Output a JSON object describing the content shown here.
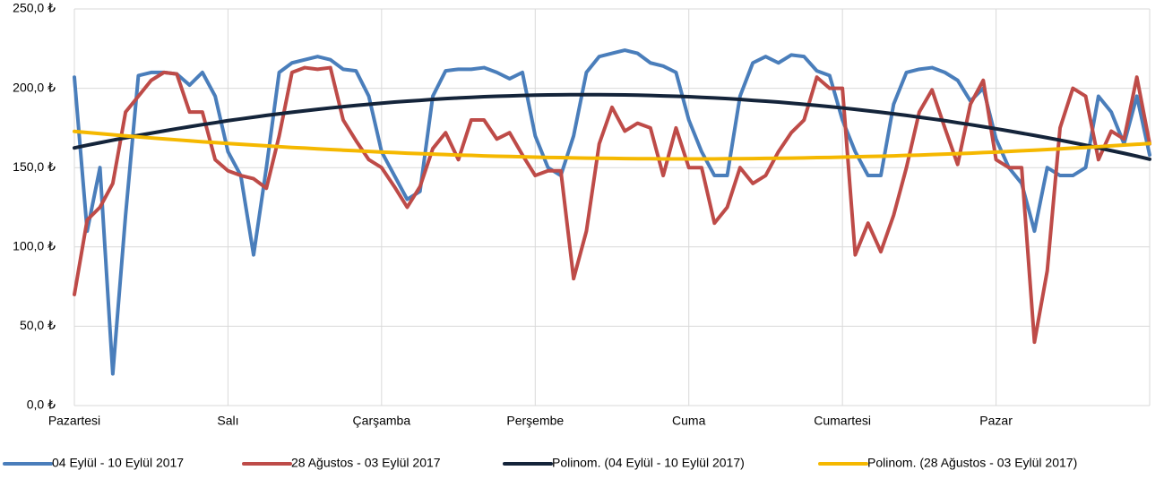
{
  "chart_data": {
    "type": "line",
    "categories": [
      "Pazartesi",
      null,
      null,
      null,
      null,
      null,
      null,
      null,
      null,
      null,
      null,
      null,
      "Salı",
      null,
      null,
      null,
      null,
      null,
      null,
      null,
      null,
      null,
      null,
      null,
      "Çarşamba",
      null,
      null,
      null,
      null,
      null,
      null,
      null,
      null,
      null,
      null,
      null,
      "Perşembe",
      null,
      null,
      null,
      null,
      null,
      null,
      null,
      null,
      null,
      null,
      null,
      "Cuma",
      null,
      null,
      null,
      null,
      null,
      null,
      null,
      null,
      null,
      null,
      null,
      "Cumartesi",
      null,
      null,
      null,
      null,
      null,
      null,
      null,
      null,
      null,
      null,
      null,
      "Pazar",
      null,
      null,
      null,
      null,
      null,
      null,
      null,
      null,
      null,
      null,
      null,
      null
    ],
    "ylim": [
      0,
      250
    ],
    "yticks": [
      {
        "value": 0,
        "label": "0,0 ₺"
      },
      {
        "value": 50,
        "label": "50,0 ₺"
      },
      {
        "value": 100,
        "label": "100,0 ₺"
      },
      {
        "value": 150,
        "label": "150,0 ₺"
      },
      {
        "value": 200,
        "label": "200,0 ₺"
      },
      {
        "value": 250,
        "label": "250,0 ₺"
      }
    ],
    "grid": true,
    "legend": "bottom",
    "series": [
      {
        "name": "04 Eylül - 10 Eylül 2017",
        "color": "#4a7ebb",
        "values": [
          207,
          110,
          150,
          20,
          120,
          208,
          210,
          210,
          209,
          202,
          210,
          195,
          160,
          145,
          95,
          150,
          210,
          216,
          218,
          220,
          218,
          212,
          211,
          195,
          160,
          145,
          130,
          135,
          195,
          211,
          212,
          212,
          213,
          210,
          206,
          210,
          170,
          150,
          145,
          170,
          210,
          220,
          222,
          224,
          222,
          216,
          214,
          210,
          180,
          160,
          145,
          145,
          195,
          216,
          220,
          216,
          221,
          220,
          211,
          208,
          180,
          160,
          145,
          145,
          190,
          210,
          212,
          213,
          210,
          205,
          192,
          200,
          168,
          150,
          140,
          110,
          150,
          145,
          145,
          150,
          195,
          185,
          165,
          195,
          158
        ]
      },
      {
        "name": "28 Ağustos - 03 Eylül 2017",
        "color": "#be4b48",
        "values": [
          70,
          117,
          125,
          140,
          185,
          195,
          205,
          210,
          209,
          185,
          185,
          155,
          148,
          145,
          143,
          137,
          170,
          210,
          213,
          212,
          213,
          180,
          167,
          155,
          150,
          138,
          125,
          138,
          162,
          172,
          155,
          180,
          180,
          168,
          172,
          158,
          145,
          148,
          148,
          80,
          110,
          165,
          188,
          173,
          178,
          175,
          145,
          175,
          150,
          150,
          115,
          125,
          150,
          140,
          145,
          160,
          172,
          180,
          207,
          200,
          200,
          95,
          115,
          97,
          120,
          150,
          185,
          199,
          175,
          152,
          190,
          205,
          155,
          150,
          150,
          40,
          85,
          175,
          200,
          195,
          155,
          173,
          168,
          207,
          165
        ]
      },
      {
        "name": "Polinom. (04 Eylül - 10 Eylül 2017)",
        "color": "#14243a",
        "values": [
          162.4,
          164.1,
          165.7,
          167.3,
          168.8,
          170.3,
          171.7,
          173.1,
          174.5,
          175.8,
          177.1,
          178.3,
          179.6,
          180.7,
          181.8,
          182.9,
          183.9,
          184.9,
          185.8,
          186.7,
          187.6,
          188.4,
          189.2,
          189.9,
          190.6,
          191.3,
          191.9,
          192.4,
          193.0,
          193.5,
          193.9,
          194.3,
          194.7,
          195.0,
          195.2,
          195.5,
          195.7,
          195.8,
          195.9,
          196.0,
          196.0,
          196.0,
          195.9,
          195.8,
          195.7,
          195.5,
          195.2,
          195.0,
          194.7,
          194.3,
          193.9,
          193.5,
          193.0,
          192.4,
          191.9,
          191.3,
          190.6,
          189.9,
          189.2,
          188.4,
          187.6,
          186.7,
          185.8,
          184.9,
          183.9,
          182.9,
          181.8,
          180.7,
          179.6,
          178.3,
          177.1,
          175.8,
          174.5,
          173.1,
          171.7,
          170.3,
          168.8,
          167.3,
          165.7,
          164.1,
          162.4,
          160.7,
          159.0,
          157.2,
          155.3
        ]
      },
      {
        "name": "Polinom. (28 Ağustos - 03 Eylül 2017)",
        "color": "#f5b800",
        "values": [
          172.8,
          172.1,
          171.4,
          170.7,
          170.0,
          169.4,
          168.7,
          168.1,
          167.5,
          166.9,
          166.3,
          165.8,
          165.2,
          164.7,
          164.2,
          163.7,
          163.2,
          162.7,
          162.3,
          161.8,
          161.4,
          161.0,
          160.6,
          160.2,
          159.8,
          159.5,
          159.1,
          158.8,
          158.5,
          158.2,
          157.9,
          157.7,
          157.4,
          157.2,
          157.0,
          156.8,
          156.6,
          156.4,
          156.3,
          156.1,
          156.0,
          155.9,
          155.8,
          155.7,
          155.6,
          155.6,
          155.5,
          155.5,
          155.5,
          155.5,
          155.5,
          155.6,
          155.6,
          155.7,
          155.8,
          155.9,
          156.0,
          156.1,
          156.3,
          156.4,
          156.6,
          156.8,
          157.0,
          157.2,
          157.4,
          157.7,
          157.9,
          158.2,
          158.5,
          158.8,
          159.1,
          159.5,
          159.8,
          160.2,
          160.6,
          161.0,
          161.4,
          161.8,
          162.3,
          162.7,
          163.2,
          163.7,
          164.2,
          164.7,
          165.2
        ]
      }
    ]
  }
}
